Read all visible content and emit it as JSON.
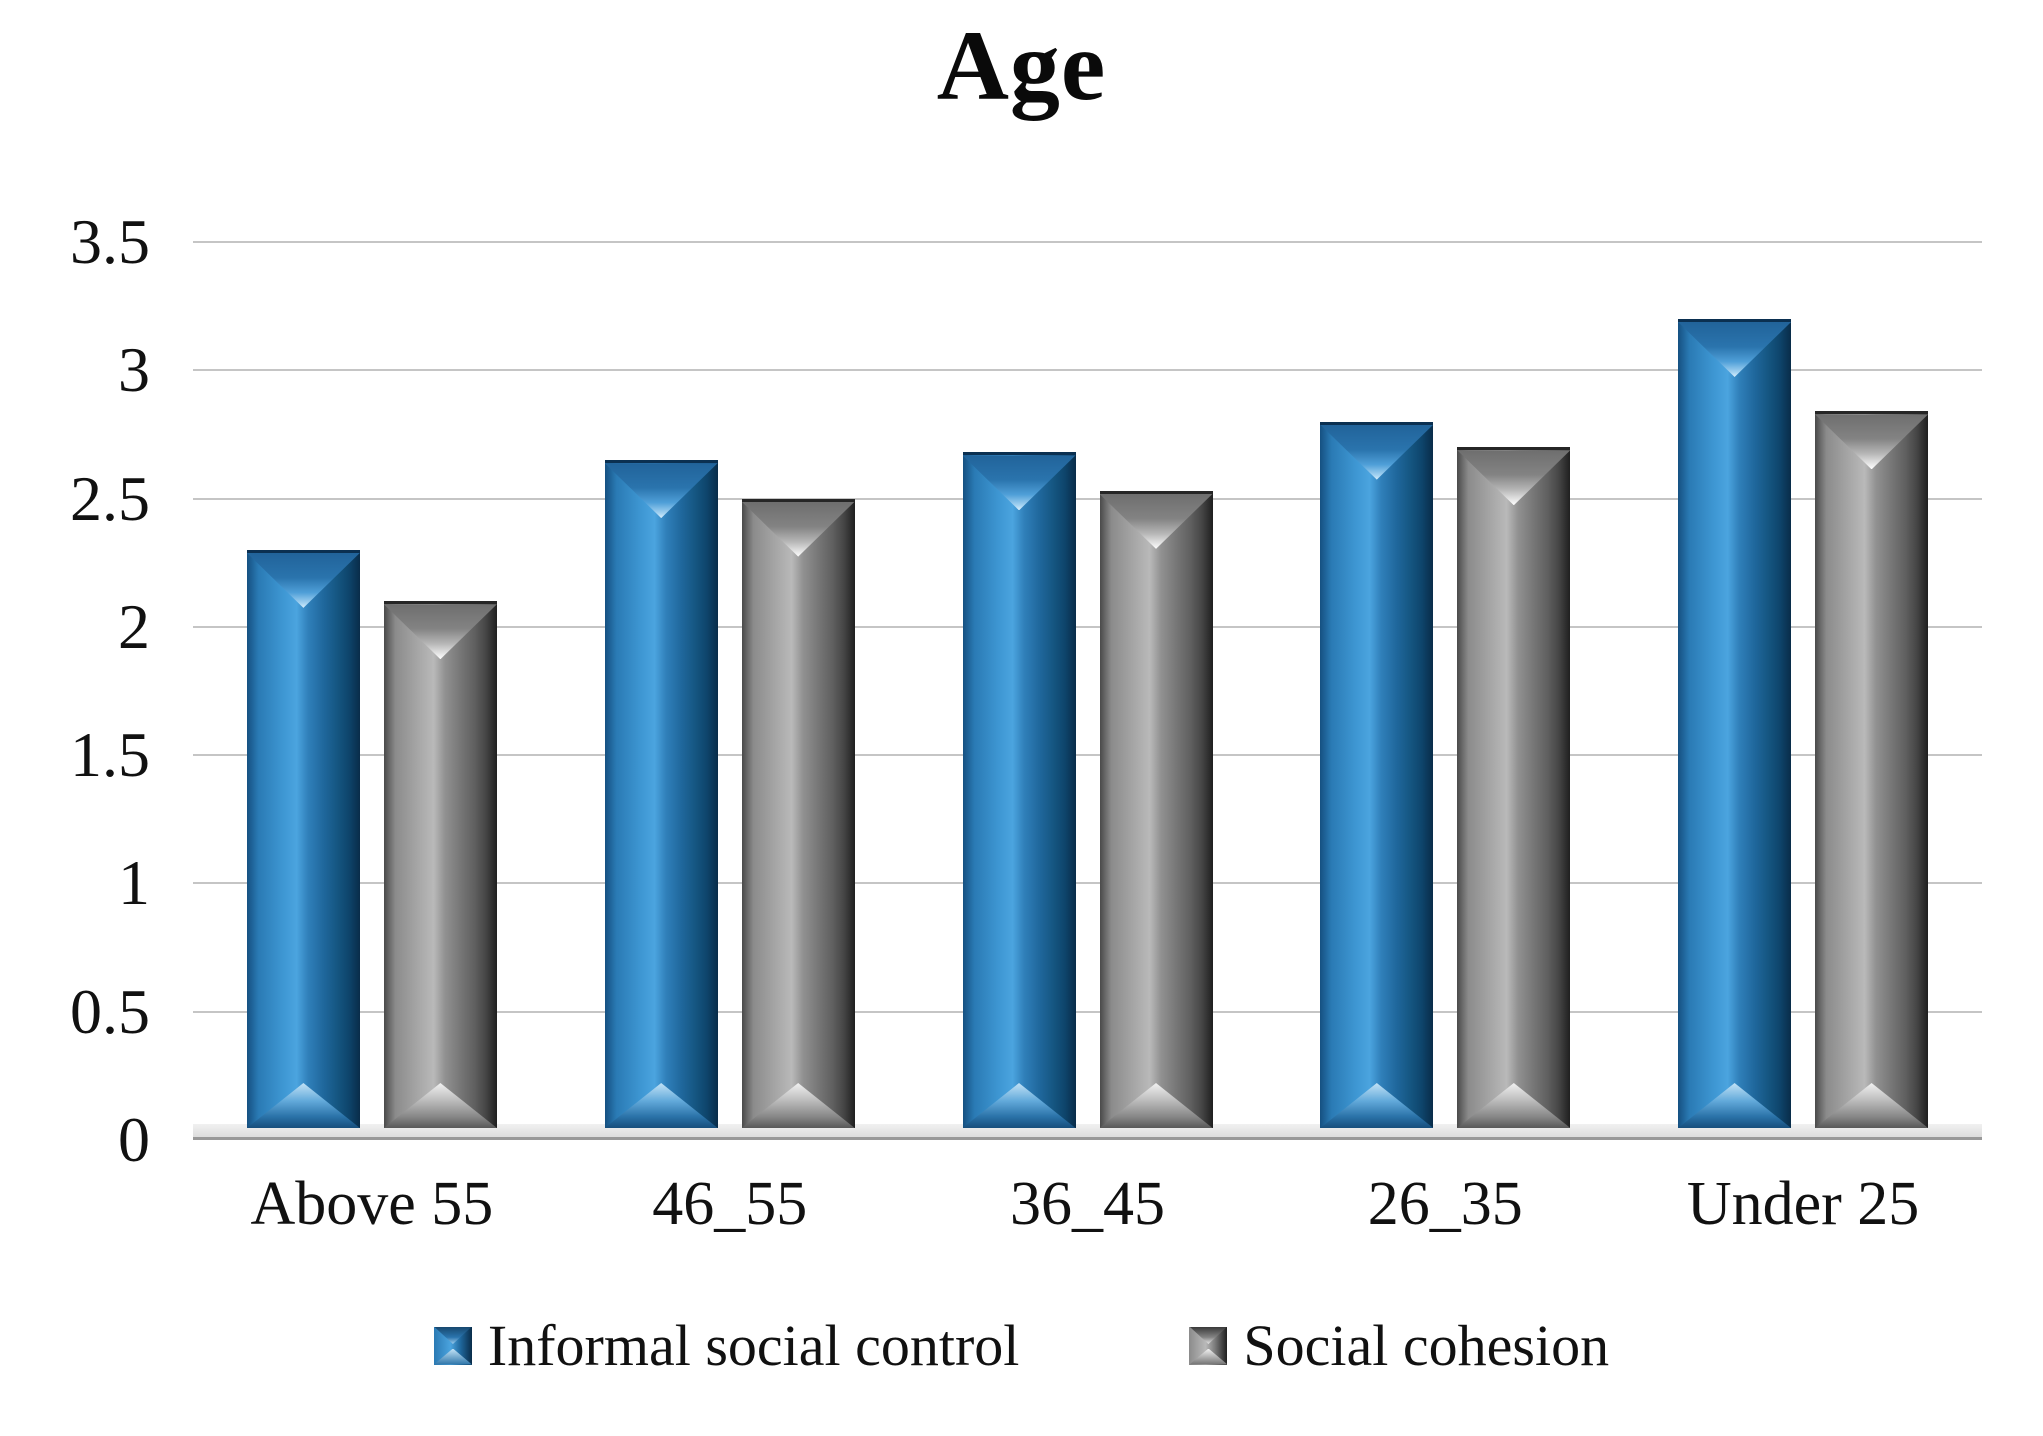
{
  "title": "Age",
  "chart_data": {
    "type": "bar",
    "title": "Age",
    "categories": [
      "Above 55",
      "46_55",
      "36_45",
      "26_35",
      "Under 25"
    ],
    "series": [
      {
        "name": "Informal social control",
        "color": "#2f81bb",
        "values": [
          2.3,
          2.65,
          2.68,
          2.8,
          3.2
        ]
      },
      {
        "name": "Social cohesion",
        "color": "#8f8f8f",
        "values": [
          2.1,
          2.5,
          2.53,
          2.7,
          2.84
        ]
      }
    ],
    "ylim": [
      0,
      3.5
    ],
    "ytick_interval": 0.5,
    "yticks": [
      "3.5",
      "3",
      "2.5",
      "2",
      "1.5",
      "1",
      "0.5",
      "0"
    ],
    "grid": "horizontal",
    "legend_position": "bottom",
    "style": "3d-triangular-prism-bars",
    "gridline_color": "#c5c5c5",
    "axis_color": "#999999"
  }
}
